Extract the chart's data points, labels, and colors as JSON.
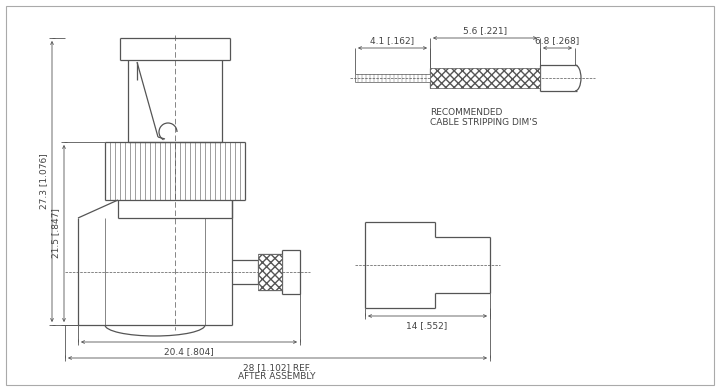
{
  "bg_color": "#ffffff",
  "line_color": "#555555",
  "text_color": "#444444",
  "figsize": [
    7.2,
    3.91
  ],
  "dpi": 100,
  "annotations": {
    "dim_27_3": "27.3 [1.076]",
    "dim_21_5": "21.5 [.847]",
    "dim_20_4": "20.4 [.804]",
    "dim_28": "28 [1.102] REF.",
    "after_assembly": "AFTER ASSEMBLY",
    "dim_4_1": "4.1 [.162]",
    "dim_5_6": "5.6 [.221]",
    "dim_6_8": "6.8 [.268]",
    "dim_14": "14 [.552]",
    "recommended": "RECOMMENDED",
    "cable_stripping": "CABLE STRIPPING DIM'S"
  }
}
